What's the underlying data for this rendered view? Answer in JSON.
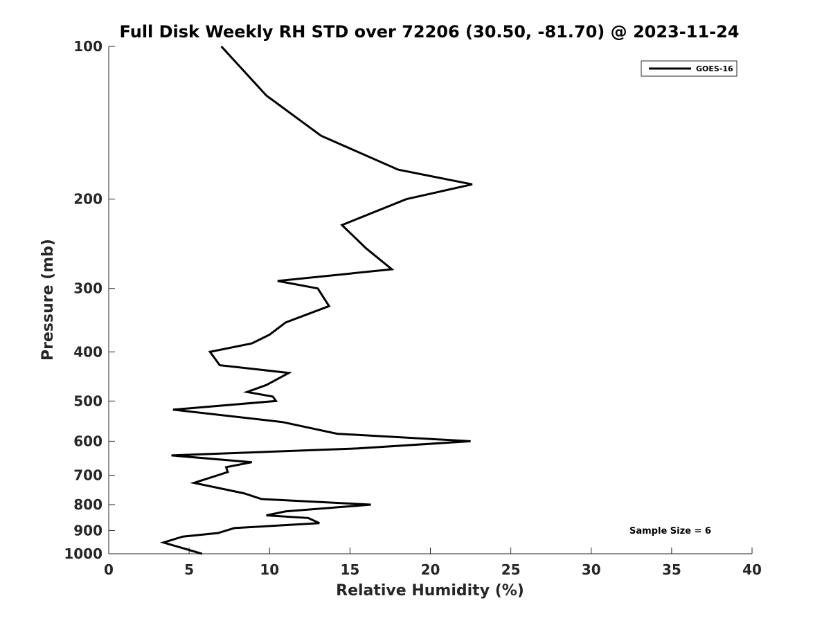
{
  "chart_data": {
    "type": "line",
    "title": "Full Disk Weekly RH STD over 72206 (30.50, -81.70) @ 2023-11-24",
    "xlabel": "Relative Humidity (%)",
    "ylabel": "Pressure (mb)",
    "xlim": [
      0,
      40
    ],
    "ylim": [
      100,
      1000
    ],
    "y_scale": "log",
    "y_reversed": true,
    "xticks": [
      "0",
      "5",
      "10",
      "15",
      "20",
      "25",
      "30",
      "35",
      "40"
    ],
    "yticks": [
      "100",
      "200",
      "300",
      "400",
      "500",
      "600",
      "700",
      "800",
      "900",
      "1000"
    ],
    "grid": false,
    "legend_position": "top-right",
    "series": [
      {
        "name": "GOES-16",
        "color": "#000000",
        "points": [
          [
            7.0,
            100
          ],
          [
            9.8,
            125
          ],
          [
            13.2,
            150
          ],
          [
            18.0,
            175
          ],
          [
            22.6,
            187
          ],
          [
            18.5,
            200
          ],
          [
            14.5,
            225
          ],
          [
            16.0,
            250
          ],
          [
            17.6,
            275
          ],
          [
            10.5,
            290
          ],
          [
            13.0,
            300
          ],
          [
            13.7,
            325
          ],
          [
            11.0,
            350
          ],
          [
            10.0,
            370
          ],
          [
            8.9,
            385
          ],
          [
            6.3,
            400
          ],
          [
            6.9,
            425
          ],
          [
            11.2,
            440
          ],
          [
            9.8,
            465
          ],
          [
            8.6,
            480
          ],
          [
            10.2,
            490
          ],
          [
            10.4,
            500
          ],
          [
            4.0,
            520
          ],
          [
            10.8,
            550
          ],
          [
            14.2,
            580
          ],
          [
            22.5,
            600
          ],
          [
            15.5,
            620
          ],
          [
            3.9,
            640
          ],
          [
            8.9,
            660
          ],
          [
            7.3,
            675
          ],
          [
            7.4,
            690
          ],
          [
            5.3,
            725
          ],
          [
            8.4,
            760
          ],
          [
            9.5,
            780
          ],
          [
            16.3,
            800
          ],
          [
            11.0,
            825
          ],
          [
            9.8,
            840
          ],
          [
            12.4,
            850
          ],
          [
            13.1,
            870
          ],
          [
            7.8,
            890
          ],
          [
            6.8,
            910
          ],
          [
            4.6,
            925
          ],
          [
            3.4,
            950
          ],
          [
            5.8,
            1000
          ]
        ]
      }
    ],
    "annotation": "Sample Size = 6"
  }
}
